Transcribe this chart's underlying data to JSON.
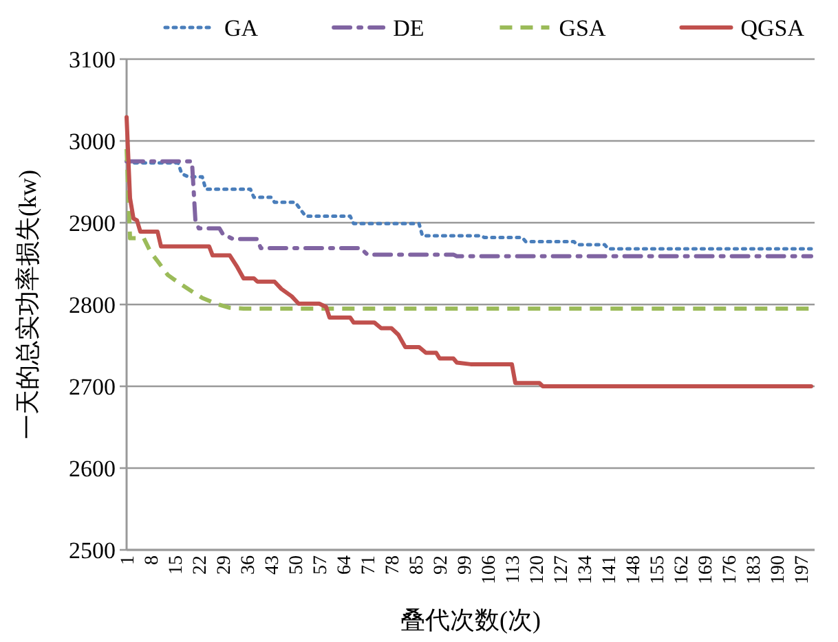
{
  "chart_data": {
    "type": "line",
    "xlabel": "叠代次数(次)",
    "ylabel": "一天的总实功率损失(kw)",
    "xlim": [
      1,
      201
    ],
    "xticks": [
      1,
      8,
      15,
      22,
      29,
      36,
      43,
      50,
      57,
      64,
      71,
      78,
      85,
      92,
      99,
      106,
      113,
      120,
      127,
      134,
      141,
      148,
      155,
      162,
      169,
      176,
      183,
      190,
      197
    ],
    "ylim": [
      2500,
      3100
    ],
    "yticks": [
      2500,
      2600,
      2700,
      2800,
      2900,
      3000,
      3100
    ],
    "grid": "y",
    "legend": "top",
    "marker": "none",
    "series": [
      {
        "name": "GA",
        "color": "#4a7ebb",
        "line_style": "dotted",
        "x": [
          1,
          2,
          16,
          17,
          19,
          23,
          24,
          37,
          38,
          43,
          44,
          50,
          53,
          66,
          67,
          86,
          87,
          104,
          105,
          116,
          117,
          131,
          132,
          140,
          141,
          200
        ],
        "values": [
          2975,
          2973,
          2973,
          2960,
          2956,
          2956,
          2941,
          2941,
          2931,
          2931,
          2925,
          2925,
          2908,
          2908,
          2899,
          2899,
          2884,
          2884,
          2882,
          2882,
          2877,
          2877,
          2873,
          2873,
          2868,
          2868
        ]
      },
      {
        "name": "DE",
        "color": "#8064a2",
        "line_style": "dashdot",
        "x": [
          1,
          20,
          21,
          22,
          28,
          29,
          32,
          39,
          40,
          69,
          71,
          96,
          97,
          200
        ],
        "values": [
          2975,
          2975,
          2903,
          2893,
          2893,
          2886,
          2880,
          2880,
          2869,
          2869,
          2861,
          2861,
          2859,
          2859
        ]
      },
      {
        "name": "GSA",
        "color": "#9bbb59",
        "line_style": "dashed",
        "x": [
          1,
          2,
          6,
          8,
          10,
          13,
          16,
          20,
          23,
          27,
          31,
          35,
          200
        ],
        "values": [
          2990,
          2881,
          2881,
          2864,
          2853,
          2836,
          2827,
          2816,
          2808,
          2801,
          2796,
          2795,
          2795
        ]
      },
      {
        "name": "QGSA",
        "color": "#c0504d",
        "line_style": "solid",
        "x": [
          1,
          2,
          3,
          4,
          5,
          10,
          11,
          25,
          26,
          31,
          33,
          35,
          38,
          39,
          44,
          46,
          49,
          51,
          57,
          59,
          60,
          66,
          67,
          73,
          75,
          78,
          80,
          82,
          86,
          88,
          91,
          92,
          96,
          97,
          101,
          113,
          114,
          121,
          122,
          200
        ],
        "values": [
          3029,
          2930,
          2905,
          2903,
          2889,
          2889,
          2871,
          2871,
          2860,
          2860,
          2847,
          2832,
          2832,
          2828,
          2828,
          2819,
          2810,
          2801,
          2801,
          2797,
          2784,
          2784,
          2778,
          2778,
          2771,
          2771,
          2763,
          2748,
          2748,
          2741,
          2741,
          2734,
          2734,
          2729,
          2727,
          2727,
          2704,
          2704,
          2700,
          2700
        ]
      }
    ]
  }
}
